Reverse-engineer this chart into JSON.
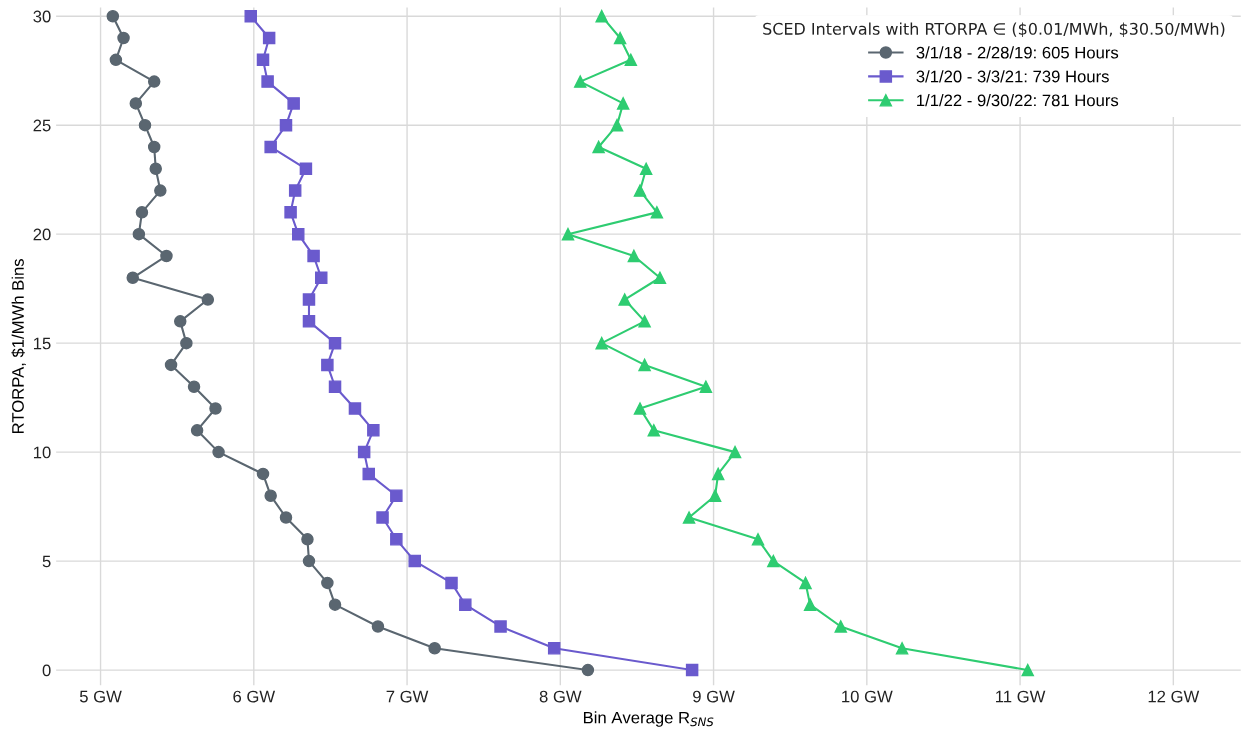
{
  "chart_data": {
    "type": "line",
    "xlabel": "Bin Average R$_{SNS}$",
    "ylabel": "RTORPA, $1/MWh Bins",
    "legend_title": "SCED Intervals with RTORPA ∈ ($0.01/MWh, $30.50/MWh)",
    "legend": "top right",
    "grid": true,
    "line_style": "solid",
    "xlim": [
      4.71,
      12.44
    ],
    "xticks": [
      {
        "value": 5,
        "label": "5 GW"
      },
      {
        "value": 6,
        "label": "6 GW"
      },
      {
        "value": 7,
        "label": "7 GW"
      },
      {
        "value": 8,
        "label": "8 GW"
      },
      {
        "value": 9,
        "label": "9 GW"
      },
      {
        "value": 10,
        "label": "10 GW"
      },
      {
        "value": 11,
        "label": "11 GW"
      },
      {
        "value": 12,
        "label": "12 GW"
      }
    ],
    "ylim": [
      -0.7,
      30.4
    ],
    "yticks": [
      0,
      5,
      10,
      15,
      20,
      25,
      30
    ],
    "series": [
      {
        "name": "3/1/18 - 2/28/19: 605 Hours",
        "color": "#5a6670",
        "marker": "circle",
        "values": [
          0,
          1,
          2,
          3,
          4,
          5,
          6,
          7,
          8,
          9,
          10,
          11,
          12,
          13,
          14,
          15,
          16,
          17,
          18,
          19,
          20,
          21,
          22,
          23,
          24,
          25,
          26,
          27,
          28,
          29,
          30
        ],
        "x": [
          8.18,
          7.18,
          6.81,
          6.53,
          6.48,
          6.36,
          6.35,
          6.21,
          6.11,
          6.06,
          5.77,
          5.63,
          5.75,
          5.61,
          5.46,
          5.56,
          5.52,
          5.7,
          5.21,
          5.43,
          5.25,
          5.27,
          5.39,
          5.36,
          5.35,
          5.29,
          5.23,
          5.35,
          5.1,
          5.15,
          5.08
        ]
      },
      {
        "name": "3/1/20 - 3/3/21: 739 Hours",
        "color": "#6a5acd",
        "marker": "square",
        "values": [
          0,
          1,
          2,
          3,
          4,
          5,
          6,
          7,
          8,
          9,
          10,
          11,
          12,
          13,
          14,
          15,
          16,
          17,
          18,
          19,
          20,
          21,
          22,
          23,
          24,
          25,
          26,
          27,
          28,
          29,
          30
        ],
        "x": [
          8.86,
          7.96,
          7.61,
          7.38,
          7.29,
          7.05,
          6.93,
          6.84,
          6.93,
          6.75,
          6.72,
          6.78,
          6.66,
          6.53,
          6.48,
          6.53,
          6.36,
          6.36,
          6.44,
          6.39,
          6.29,
          6.24,
          6.27,
          6.34,
          6.11,
          6.21,
          6.26,
          6.09,
          6.06,
          6.1,
          5.98
        ]
      },
      {
        "name": "1/1/22 - 9/30/22: 781 Hours",
        "color": "#2ecc71",
        "marker": "triangle",
        "values": [
          0,
          1,
          2,
          3,
          4,
          5,
          6,
          7,
          8,
          9,
          10,
          11,
          12,
          13,
          14,
          15,
          16,
          17,
          18,
          19,
          20,
          21,
          22,
          23,
          24,
          25,
          26,
          27,
          28,
          29,
          30
        ],
        "x": [
          11.05,
          10.23,
          9.83,
          9.63,
          9.6,
          9.39,
          9.29,
          8.84,
          9.01,
          9.03,
          9.14,
          8.61,
          8.52,
          8.95,
          8.55,
          8.27,
          8.55,
          8.42,
          8.65,
          8.48,
          8.05,
          8.63,
          8.52,
          8.56,
          8.25,
          8.37,
          8.41,
          8.13,
          8.46,
          8.39,
          8.27
        ]
      }
    ]
  }
}
